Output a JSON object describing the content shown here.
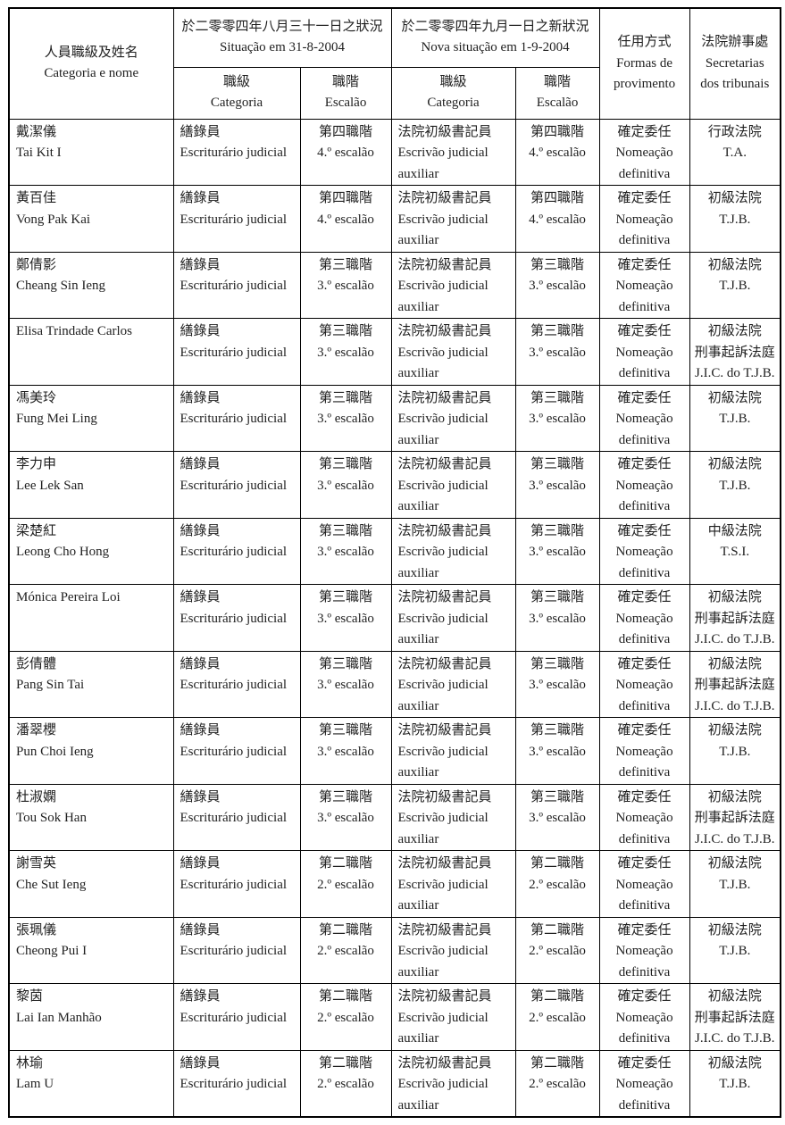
{
  "table": {
    "header": {
      "name_zh": "人員職級及姓名",
      "name_pt": "Categoria e nome",
      "old_zh": "於二零零四年八月三十一日之狀況",
      "old_pt": "Situação em 31-8-2004",
      "new_zh": "於二零零四年九月一日之新狀況",
      "new_pt": "Nova situação em 1-9-2004",
      "cat_zh": "職級",
      "cat_pt": "Categoria",
      "esc_zh": "職階",
      "esc_pt": "Escalão",
      "prov_zh": "任用方式",
      "prov_pt1": "Formas de",
      "prov_pt2": "provimento",
      "court_zh": "法院辦事處",
      "court_pt1": "Secretarias",
      "court_pt2": "dos tribunais"
    },
    "rows": [
      {
        "name_1": "戴潔儀",
        "name_2": "Tai Kit I",
        "old_cat_1": "繕錄員",
        "old_cat_2": "Escriturário judicial",
        "old_esc_1": "第四職階",
        "old_esc_2": "4.º escalão",
        "new_cat_1": "法院初級書記員",
        "new_cat_2": "Escrivão judicial",
        "new_cat_3": "auxiliar",
        "new_esc_1": "第四職階",
        "new_esc_2": "4.º escalão",
        "prov_1": "確定委任",
        "prov_2": "Nomeação",
        "prov_3": "definitiva",
        "court_1": "行政法院",
        "court_2": "T.A.",
        "court_3": ""
      },
      {
        "name_1": "黃百佳",
        "name_2": "Vong Pak Kai",
        "old_cat_1": "繕錄員",
        "old_cat_2": "Escriturário judicial",
        "old_esc_1": "第四職階",
        "old_esc_2": "4.º escalão",
        "new_cat_1": "法院初級書記員",
        "new_cat_2": "Escrivão judicial",
        "new_cat_3": "auxiliar",
        "new_esc_1": "第四職階",
        "new_esc_2": "4.º escalão",
        "prov_1": "確定委任",
        "prov_2": "Nomeação",
        "prov_3": "definitiva",
        "court_1": "初級法院",
        "court_2": "T.J.B.",
        "court_3": ""
      },
      {
        "name_1": "鄭倩影",
        "name_2": "Cheang Sin Ieng",
        "old_cat_1": "繕錄員",
        "old_cat_2": "Escriturário judicial",
        "old_esc_1": "第三職階",
        "old_esc_2": "3.º escalão",
        "new_cat_1": "法院初級書記員",
        "new_cat_2": "Escrivão judicial",
        "new_cat_3": "auxiliar",
        "new_esc_1": "第三職階",
        "new_esc_2": "3.º escalão",
        "prov_1": "確定委任",
        "prov_2": "Nomeação",
        "prov_3": "definitiva",
        "court_1": "初級法院",
        "court_2": "T.J.B.",
        "court_3": ""
      },
      {
        "name_1": "Elisa Trindade Carlos",
        "name_2": "",
        "old_cat_1": "繕錄員",
        "old_cat_2": "Escriturário judicial",
        "old_esc_1": "第三職階",
        "old_esc_2": "3.º escalão",
        "new_cat_1": "法院初級書記員",
        "new_cat_2": "Escrivão judicial",
        "new_cat_3": "auxiliar",
        "new_esc_1": "第三職階",
        "new_esc_2": "3.º escalão",
        "prov_1": "確定委任",
        "prov_2": "Nomeação",
        "prov_3": "definitiva",
        "court_1": "初級法院",
        "court_2": "刑事起訴法庭",
        "court_3": "J.I.C. do T.J.B."
      },
      {
        "name_1": "馮美玲",
        "name_2": "Fung Mei Ling",
        "old_cat_1": "繕錄員",
        "old_cat_2": "Escriturário judicial",
        "old_esc_1": "第三職階",
        "old_esc_2": "3.º escalão",
        "new_cat_1": "法院初級書記員",
        "new_cat_2": "Escrivão judicial",
        "new_cat_3": "auxiliar",
        "new_esc_1": "第三職階",
        "new_esc_2": "3.º escalão",
        "prov_1": "確定委任",
        "prov_2": "Nomeação",
        "prov_3": "definitiva",
        "court_1": "初級法院",
        "court_2": "T.J.B.",
        "court_3": ""
      },
      {
        "name_1": "李力申",
        "name_2": "Lee Lek San",
        "old_cat_1": "繕錄員",
        "old_cat_2": "Escriturário judicial",
        "old_esc_1": "第三職階",
        "old_esc_2": "3.º escalão",
        "new_cat_1": "法院初級書記員",
        "new_cat_2": "Escrivão judicial",
        "new_cat_3": "auxiliar",
        "new_esc_1": "第三職階",
        "new_esc_2": "3.º escalão",
        "prov_1": "確定委任",
        "prov_2": "Nomeação",
        "prov_3": "definitiva",
        "court_1": "初級法院",
        "court_2": "T.J.B.",
        "court_3": ""
      },
      {
        "name_1": "梁楚紅",
        "name_2": "Leong Cho Hong",
        "old_cat_1": "繕錄員",
        "old_cat_2": "Escriturário judicial",
        "old_esc_1": "第三職階",
        "old_esc_2": "3.º escalão",
        "new_cat_1": "法院初級書記員",
        "new_cat_2": "Escrivão judicial",
        "new_cat_3": "auxiliar",
        "new_esc_1": "第三職階",
        "new_esc_2": "3.º escalão",
        "prov_1": "確定委任",
        "prov_2": "Nomeação",
        "prov_3": "definitiva",
        "court_1": "中級法院",
        "court_2": "T.S.I.",
        "court_3": ""
      },
      {
        "name_1": "Mónica Pereira Loi",
        "name_2": "",
        "old_cat_1": "繕錄員",
        "old_cat_2": "Escriturário judicial",
        "old_esc_1": "第三職階",
        "old_esc_2": "3.º escalão",
        "new_cat_1": "法院初級書記員",
        "new_cat_2": "Escrivão judicial",
        "new_cat_3": "auxiliar",
        "new_esc_1": "第三職階",
        "new_esc_2": "3.º escalão",
        "prov_1": "確定委任",
        "prov_2": "Nomeação",
        "prov_3": "definitiva",
        "court_1": "初級法院",
        "court_2": "刑事起訴法庭",
        "court_3": "J.I.C. do T.J.B."
      },
      {
        "name_1": "彭倩體",
        "name_2": "Pang Sin Tai",
        "old_cat_1": "繕錄員",
        "old_cat_2": "Escriturário judicial",
        "old_esc_1": "第三職階",
        "old_esc_2": "3.º escalão",
        "new_cat_1": "法院初級書記員",
        "new_cat_2": "Escrivão judicial",
        "new_cat_3": "auxiliar",
        "new_esc_1": "第三職階",
        "new_esc_2": "3.º escalão",
        "prov_1": "確定委任",
        "prov_2": "Nomeação",
        "prov_3": "definitiva",
        "court_1": "初級法院",
        "court_2": "刑事起訴法庭",
        "court_3": "J.I.C. do T.J.B."
      },
      {
        "name_1": "潘翠櫻",
        "name_2": "Pun Choi Ieng",
        "old_cat_1": "繕錄員",
        "old_cat_2": "Escriturário judicial",
        "old_esc_1": "第三職階",
        "old_esc_2": "3.º escalão",
        "new_cat_1": "法院初級書記員",
        "new_cat_2": "Escrivão judicial",
        "new_cat_3": "auxiliar",
        "new_esc_1": "第三職階",
        "new_esc_2": "3.º escalão",
        "prov_1": "確定委任",
        "prov_2": "Nomeação",
        "prov_3": "definitiva",
        "court_1": "初級法院",
        "court_2": "T.J.B.",
        "court_3": ""
      },
      {
        "name_1": "杜淑嫻",
        "name_2": "Tou Sok Han",
        "old_cat_1": "繕錄員",
        "old_cat_2": "Escriturário judicial",
        "old_esc_1": "第三職階",
        "old_esc_2": "3.º escalão",
        "new_cat_1": "法院初級書記員",
        "new_cat_2": "Escrivão judicial",
        "new_cat_3": "auxiliar",
        "new_esc_1": "第三職階",
        "new_esc_2": "3.º escalão",
        "prov_1": "確定委任",
        "prov_2": "Nomeação",
        "prov_3": "definitiva",
        "court_1": "初級法院",
        "court_2": "刑事起訴法庭",
        "court_3": "J.I.C. do T.J.B."
      },
      {
        "name_1": "謝雪英",
        "name_2": "Che Sut Ieng",
        "old_cat_1": "繕錄員",
        "old_cat_2": "Escriturário judicial",
        "old_esc_1": "第二職階",
        "old_esc_2": "2.º escalão",
        "new_cat_1": "法院初級書記員",
        "new_cat_2": "Escrivão judicial",
        "new_cat_3": "auxiliar",
        "new_esc_1": "第二職階",
        "new_esc_2": "2.º escalão",
        "prov_1": "確定委任",
        "prov_2": "Nomeação",
        "prov_3": "definitiva",
        "court_1": "初級法院",
        "court_2": "T.J.B.",
        "court_3": ""
      },
      {
        "name_1": "張珮儀",
        "name_2": "Cheong Pui I",
        "old_cat_1": "繕錄員",
        "old_cat_2": "Escriturário judicial",
        "old_esc_1": "第二職階",
        "old_esc_2": "2.º escalão",
        "new_cat_1": "法院初級書記員",
        "new_cat_2": "Escrivão judicial",
        "new_cat_3": "auxiliar",
        "new_esc_1": "第二職階",
        "new_esc_2": "2.º escalão",
        "prov_1": "確定委任",
        "prov_2": "Nomeação",
        "prov_3": "definitiva",
        "court_1": "初級法院",
        "court_2": "T.J.B.",
        "court_3": ""
      },
      {
        "name_1": "黎茵",
        "name_2": "Lai Ian Manhão",
        "old_cat_1": "繕錄員",
        "old_cat_2": "Escriturário judicial",
        "old_esc_1": "第二職階",
        "old_esc_2": "2.º escalão",
        "new_cat_1": "法院初級書記員",
        "new_cat_2": "Escrivão judicial",
        "new_cat_3": "auxiliar",
        "new_esc_1": "第二職階",
        "new_esc_2": "2.º escalão",
        "prov_1": "確定委任",
        "prov_2": "Nomeação",
        "prov_3": "definitiva",
        "court_1": "初級法院",
        "court_2": "刑事起訴法庭",
        "court_3": "J.I.C. do T.J.B."
      },
      {
        "name_1": "林瑜",
        "name_2": "Lam U",
        "old_cat_1": "繕錄員",
        "old_cat_2": "Escriturário judicial",
        "old_esc_1": "第二職階",
        "old_esc_2": "2.º escalão",
        "new_cat_1": "法院初級書記員",
        "new_cat_2": "Escrivão judicial",
        "new_cat_3": "auxiliar",
        "new_esc_1": "第二職階",
        "new_esc_2": "2.º escalão",
        "prov_1": "確定委任",
        "prov_2": "Nomeação",
        "prov_3": "definitiva",
        "court_1": "初級法院",
        "court_2": "T.J.B.",
        "court_3": ""
      }
    ]
  }
}
